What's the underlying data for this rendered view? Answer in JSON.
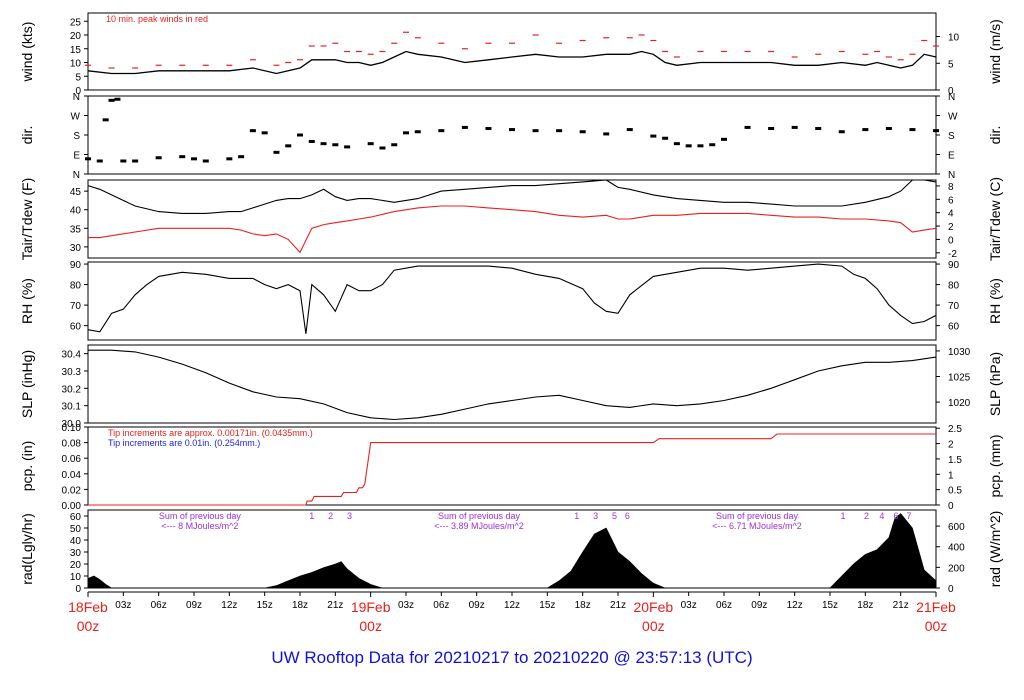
{
  "title": "UW Rooftop Data for 20210217  to  20210220 @ 23:57:13  (UTC)",
  "colors": {
    "background": "#ffffff",
    "trace": "#000000",
    "dewpoint": "#e8201c",
    "precip": "#e8201c",
    "annotation": "#e8201c",
    "annotation2": "#1c1cd8",
    "radiation_note": "#9b30d8",
    "date_label": "#e8201c",
    "title": "#1010d8"
  },
  "x_axis": {
    "range_hours": [
      0,
      72
    ],
    "hour_tick_labels": [
      {
        "h": 3,
        "label": "03z"
      },
      {
        "h": 6,
        "label": "06z"
      },
      {
        "h": 9,
        "label": "09z"
      },
      {
        "h": 12,
        "label": "12z"
      },
      {
        "h": 15,
        "label": "15z"
      },
      {
        "h": 18,
        "label": "18z"
      },
      {
        "h": 21,
        "label": "21z"
      },
      {
        "h": 27,
        "label": "03z"
      },
      {
        "h": 30,
        "label": "06z"
      },
      {
        "h": 33,
        "label": "09z"
      },
      {
        "h": 36,
        "label": "12z"
      },
      {
        "h": 39,
        "label": "15z"
      },
      {
        "h": 42,
        "label": "18z"
      },
      {
        "h": 45,
        "label": "21z"
      },
      {
        "h": 51,
        "label": "03z"
      },
      {
        "h": 54,
        "label": "06z"
      },
      {
        "h": 57,
        "label": "09z"
      },
      {
        "h": 60,
        "label": "12z"
      },
      {
        "h": 63,
        "label": "15z"
      },
      {
        "h": 66,
        "label": "18z"
      },
      {
        "h": 69,
        "label": "21z"
      }
    ],
    "date_labels": [
      {
        "h": 0,
        "date": "18Feb",
        "time": "00z"
      },
      {
        "h": 24,
        "date": "19Feb",
        "time": "00z"
      },
      {
        "h": 48,
        "date": "20Feb",
        "time": "00z"
      },
      {
        "h": 72,
        "date": "21Feb",
        "time": "00z"
      }
    ]
  },
  "chart_data": [
    {
      "type": "line",
      "panel": "wind",
      "ylabel_left": "wind (kts)",
      "ylabel_right": "wind (m/s)",
      "ylim": [
        0,
        28
      ],
      "left_ticks": [
        0,
        5,
        10,
        15,
        20,
        25
      ],
      "right_ticks": [
        0,
        5,
        10
      ],
      "right_scale": 0.5144,
      "annotation": "10 min. peak winds in red",
      "x": [
        0,
        2,
        4,
        6,
        8,
        10,
        12,
        14,
        16,
        17,
        18,
        19,
        20,
        21,
        22,
        23,
        24,
        25,
        26,
        27,
        28,
        30,
        32,
        34,
        36,
        38,
        40,
        42,
        44,
        46,
        47,
        48,
        49,
        50,
        52,
        54,
        56,
        58,
        60,
        62,
        64,
        66,
        67,
        68,
        69,
        70,
        71,
        72
      ],
      "series": [
        {
          "values": [
            7,
            6,
            6,
            7,
            7,
            7,
            7,
            8,
            6,
            7,
            8,
            11,
            11,
            11,
            10,
            10,
            9,
            10,
            12,
            14,
            13,
            12,
            10,
            11,
            12,
            13,
            12,
            12,
            13,
            13,
            14,
            13,
            10,
            9,
            10,
            10,
            10,
            10,
            9,
            9,
            10,
            9,
            10,
            9,
            8,
            9,
            13,
            12
          ]
        },
        {
          "values": [
            9,
            8,
            8,
            9,
            9,
            9,
            9,
            11,
            9,
            10,
            11,
            16,
            16,
            17,
            14,
            14,
            13,
            14,
            17,
            21,
            19,
            17,
            15,
            17,
            17,
            20,
            17,
            18,
            19,
            19,
            20,
            18,
            14,
            12,
            14,
            14,
            14,
            14,
            12,
            13,
            14,
            13,
            14,
            12,
            11,
            13,
            18,
            16
          ]
        }
      ]
    },
    {
      "type": "scatter",
      "panel": "dir",
      "ylabel_left": "dir.",
      "ylabel_right": "dir.",
      "ylim": [
        0,
        360
      ],
      "tick_labels": [
        "N",
        "E",
        "S",
        "W",
        "N"
      ],
      "x": [
        0,
        1,
        1.5,
        2,
        2.5,
        3,
        4,
        6,
        8,
        9,
        10,
        12,
        13,
        14,
        15,
        16,
        17,
        18,
        19,
        20,
        21,
        22,
        24,
        25,
        26,
        27,
        28,
        30,
        32,
        34,
        36,
        38,
        40,
        42,
        44,
        46,
        48,
        49,
        50,
        51,
        52,
        53,
        54,
        56,
        58,
        60,
        62,
        64,
        66,
        68,
        70,
        72
      ],
      "values": [
        70,
        60,
        250,
        340,
        345,
        60,
        60,
        75,
        80,
        70,
        60,
        70,
        80,
        200,
        190,
        100,
        130,
        180,
        150,
        140,
        135,
        125,
        140,
        120,
        135,
        190,
        195,
        200,
        215,
        210,
        205,
        200,
        200,
        195,
        185,
        205,
        175,
        165,
        140,
        130,
        130,
        135,
        160,
        215,
        210,
        215,
        210,
        195,
        205,
        210,
        205,
        200
      ]
    },
    {
      "type": "line",
      "panel": "temp",
      "ylabel_left": "Tair/Tdew (F)",
      "ylabel_right": "Tair/Tdew (C)",
      "ylim": [
        27,
        48
      ],
      "left_ticks": [
        30,
        35,
        40,
        45
      ],
      "right_ticks": [
        -2,
        0,
        2,
        4,
        6,
        8
      ],
      "x": [
        0,
        1,
        2,
        4,
        6,
        8,
        10,
        12,
        13,
        14,
        15,
        16,
        17,
        18,
        19,
        20,
        21,
        22,
        23,
        24,
        26,
        28,
        30,
        32,
        34,
        36,
        38,
        40,
        42,
        44,
        45,
        46,
        48,
        50,
        52,
        54,
        56,
        58,
        60,
        62,
        64,
        66,
        68,
        69,
        70,
        71,
        72
      ],
      "series": [
        {
          "values": [
            46.5,
            45.5,
            44,
            41,
            39.5,
            39,
            39,
            39.5,
            39.5,
            40.5,
            41.5,
            42.5,
            43,
            43,
            44,
            45.5,
            43.5,
            42.5,
            43,
            43,
            42,
            43,
            45,
            45.5,
            46,
            46.5,
            46.5,
            47,
            47.5,
            48,
            46,
            45.5,
            44,
            43,
            42.5,
            42,
            42,
            41.5,
            41,
            41,
            41,
            42,
            43.5,
            45,
            48,
            48,
            47.5
          ]
        },
        {
          "values": [
            32.5,
            32.5,
            33,
            34,
            35,
            35,
            35,
            35,
            34.5,
            33.5,
            33,
            33.5,
            32,
            28.5,
            35,
            36,
            36.5,
            37,
            37.5,
            38,
            39.5,
            40.5,
            41,
            41,
            40.5,
            40,
            39.5,
            38.5,
            38,
            38.5,
            37.5,
            37.5,
            38.5,
            38.5,
            39,
            39,
            39,
            38.5,
            38,
            38,
            37.5,
            37.5,
            37,
            36.5,
            34,
            34.5,
            35
          ]
        }
      ]
    },
    {
      "type": "line",
      "panel": "rh",
      "ylabel_left": "RH (%)",
      "ylabel_right": "RH (%)",
      "ylim": [
        53,
        91
      ],
      "left_ticks": [
        60,
        70,
        80,
        90
      ],
      "right_ticks": [
        60,
        70,
        80,
        90
      ],
      "x": [
        0,
        1,
        2,
        3,
        4,
        5,
        6,
        8,
        10,
        12,
        14,
        15,
        16,
        17,
        18,
        18.5,
        19,
        20,
        21,
        22,
        23,
        24,
        25,
        26,
        28,
        30,
        32,
        34,
        36,
        38,
        40,
        42,
        43,
        44,
        45,
        46,
        48,
        50,
        52,
        54,
        56,
        58,
        60,
        62,
        64,
        65,
        66,
        67,
        68,
        69,
        70,
        71,
        72
      ],
      "values": [
        58,
        57,
        66,
        68,
        75,
        80,
        84,
        86,
        85,
        83,
        83,
        80,
        78,
        80,
        77,
        56,
        80,
        75,
        67,
        80,
        77,
        77,
        80,
        87,
        89,
        89,
        89,
        89,
        88,
        85,
        83,
        78,
        71,
        67,
        66,
        75,
        84,
        86,
        88,
        88,
        87,
        88,
        89,
        90,
        89,
        85,
        83,
        78,
        70,
        65,
        61,
        62,
        65
      ]
    },
    {
      "type": "line",
      "panel": "slp",
      "ylabel_left": "SLP (inHg)",
      "ylabel_right": "SLP (hPa)",
      "ylim": [
        30.0,
        30.45
      ],
      "left_ticks": [
        30.0,
        30.1,
        30.2,
        30.3,
        30.4
      ],
      "right_ticks": [
        1020,
        1025,
        1030
      ],
      "x": [
        0,
        2,
        4,
        6,
        8,
        10,
        12,
        14,
        16,
        18,
        20,
        22,
        24,
        26,
        28,
        30,
        32,
        34,
        36,
        38,
        40,
        42,
        44,
        46,
        48,
        50,
        52,
        54,
        56,
        58,
        60,
        62,
        64,
        66,
        68,
        70,
        72
      ],
      "values": [
        30.42,
        30.42,
        30.41,
        30.38,
        30.34,
        30.29,
        30.23,
        30.18,
        30.15,
        30.14,
        30.11,
        30.06,
        30.03,
        30.02,
        30.03,
        30.05,
        30.08,
        30.11,
        30.13,
        30.15,
        30.16,
        30.13,
        30.1,
        30.09,
        30.11,
        30.1,
        30.11,
        30.13,
        30.16,
        30.2,
        30.25,
        30.3,
        30.33,
        30.35,
        30.35,
        30.36,
        30.38
      ]
    },
    {
      "type": "line",
      "panel": "pcp",
      "ylabel_left": "pcp. (in)",
      "ylabel_right": "pcp. (mm)",
      "ylim": [
        0,
        0.1
      ],
      "left_ticks": [
        0.0,
        0.02,
        0.04,
        0.06,
        0.08,
        0.1
      ],
      "right_ticks": [
        0,
        0.5,
        1,
        1.5,
        2,
        2.5
      ],
      "annotation_1": "Tip increments are approx. 0.00171in. (0.0435mm.)",
      "annotation_2": "Tip increments are 0.01in. (0.254mm.)",
      "x": [
        0,
        18.5,
        18.6,
        19,
        19.2,
        21.5,
        21.7,
        22.8,
        23,
        23.3,
        23.5,
        24,
        25,
        48,
        48.5,
        58,
        58.5,
        72
      ],
      "values": [
        0,
        0,
        0.005,
        0.005,
        0.011,
        0.011,
        0.016,
        0.016,
        0.022,
        0.022,
        0.027,
        0.08,
        0.08,
        0.08,
        0.085,
        0.085,
        0.091,
        0.091
      ]
    },
    {
      "type": "area",
      "panel": "rad",
      "ylabel_left": "rad(Lgly/hr)",
      "ylabel_right": "rad (W/m^2)",
      "ylim": [
        0,
        65
      ],
      "left_ticks": [
        0,
        10,
        20,
        30,
        40,
        50,
        60
      ],
      "right_ticks": [
        0,
        200,
        400,
        600
      ],
      "x": [
        0,
        0.5,
        1,
        1.5,
        2,
        15,
        16,
        17,
        18,
        19,
        20,
        21,
        21.5,
        22,
        23,
        24,
        25,
        39,
        40,
        41,
        42,
        43,
        44,
        45,
        46,
        47,
        48,
        49,
        63,
        64,
        65,
        66,
        67,
        68,
        68.5,
        69,
        70,
        71,
        72
      ],
      "values": [
        8,
        10,
        7,
        3,
        0,
        0,
        2,
        6,
        10,
        13,
        17,
        20,
        22,
        16,
        8,
        3,
        0,
        0,
        6,
        14,
        30,
        45,
        50,
        30,
        22,
        12,
        4,
        0,
        0,
        10,
        20,
        28,
        32,
        42,
        58,
        62,
        50,
        15,
        6
      ],
      "note_labels": [
        {
          "h": 9.5,
          "line1": "Sum of previous day",
          "line2": "<--- 8 MJoules/m^2"
        },
        {
          "h": 33.2,
          "line1": "Sum of previous day",
          "line2": "<--- 3.89 MJoules/m^2"
        },
        {
          "h": 56.8,
          "line1": "Sum of previous day",
          "line2": "<--- 6.71 MJoules/m^2"
        }
      ],
      "hour_markers": [
        {
          "h": 19,
          "label": "1"
        },
        {
          "h": 20.6,
          "label": "2"
        },
        {
          "h": 22.2,
          "label": "3"
        },
        {
          "h": 41.5,
          "label": "1"
        },
        {
          "h": 43.1,
          "label": "3"
        },
        {
          "h": 44.7,
          "label": "5"
        },
        {
          "h": 45.8,
          "label": "6"
        },
        {
          "h": 64.1,
          "label": "1"
        },
        {
          "h": 66.1,
          "label": "2"
        },
        {
          "h": 67.4,
          "label": "4"
        },
        {
          "h": 68.6,
          "label": "6"
        },
        {
          "h": 69.7,
          "label": "7"
        }
      ]
    }
  ]
}
